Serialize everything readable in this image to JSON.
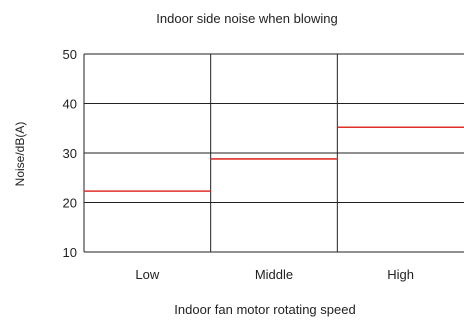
{
  "chart_data": {
    "type": "step",
    "title": "Indoor side noise when blowing",
    "xlabel": "Indoor fan motor rotating speed",
    "ylabel": "Noise/dB(A)",
    "categories": [
      "Low",
      "Middle",
      "High"
    ],
    "ylim": [
      10,
      50
    ],
    "yticks": [
      10,
      20,
      30,
      40,
      50
    ],
    "grid": true,
    "series": [
      {
        "values": [
          22.3,
          28.8,
          35.2
        ],
        "color": "#e0302a"
      }
    ],
    "colors": {
      "grid": "#222222",
      "axis": "#222222",
      "text": "#222222"
    }
  }
}
